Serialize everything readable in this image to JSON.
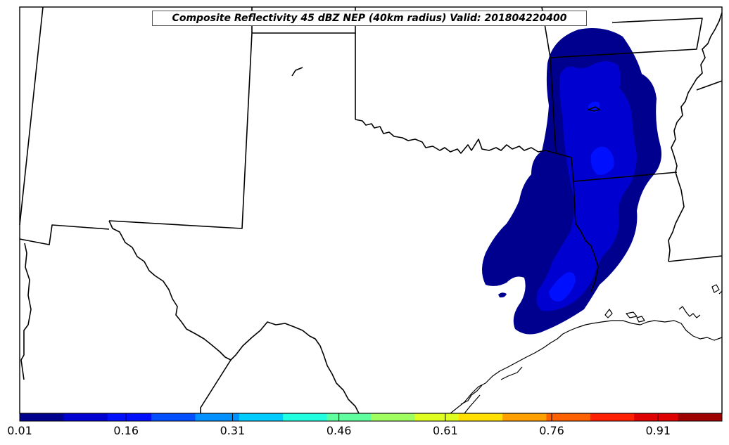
{
  "title": "Composite Reflectivity 45 dBZ NEP (40km radius) Valid: 201804220400",
  "colorbar": {
    "min": 0.01,
    "max": 1.0,
    "tick_labels": [
      "0.01",
      "0.16",
      "0.31",
      "0.46",
      "0.61",
      "0.76",
      "0.91"
    ],
    "tick_values": [
      0.01,
      0.16,
      0.31,
      0.46,
      0.61,
      0.76,
      0.91
    ],
    "colors": [
      "#00008f",
      "#0000d0",
      "#0010ff",
      "#0050ff",
      "#0090ff",
      "#00ccff",
      "#20ffdf",
      "#5fffa0",
      "#9fff60",
      "#dfff20",
      "#ffe000",
      "#ffa000",
      "#ff6000",
      "#ff2000",
      "#df0000",
      "#9f0000"
    ]
  },
  "field_colors": {
    "level1": "#00008f",
    "level2": "#0000d0",
    "level3": "#0010ff"
  }
}
